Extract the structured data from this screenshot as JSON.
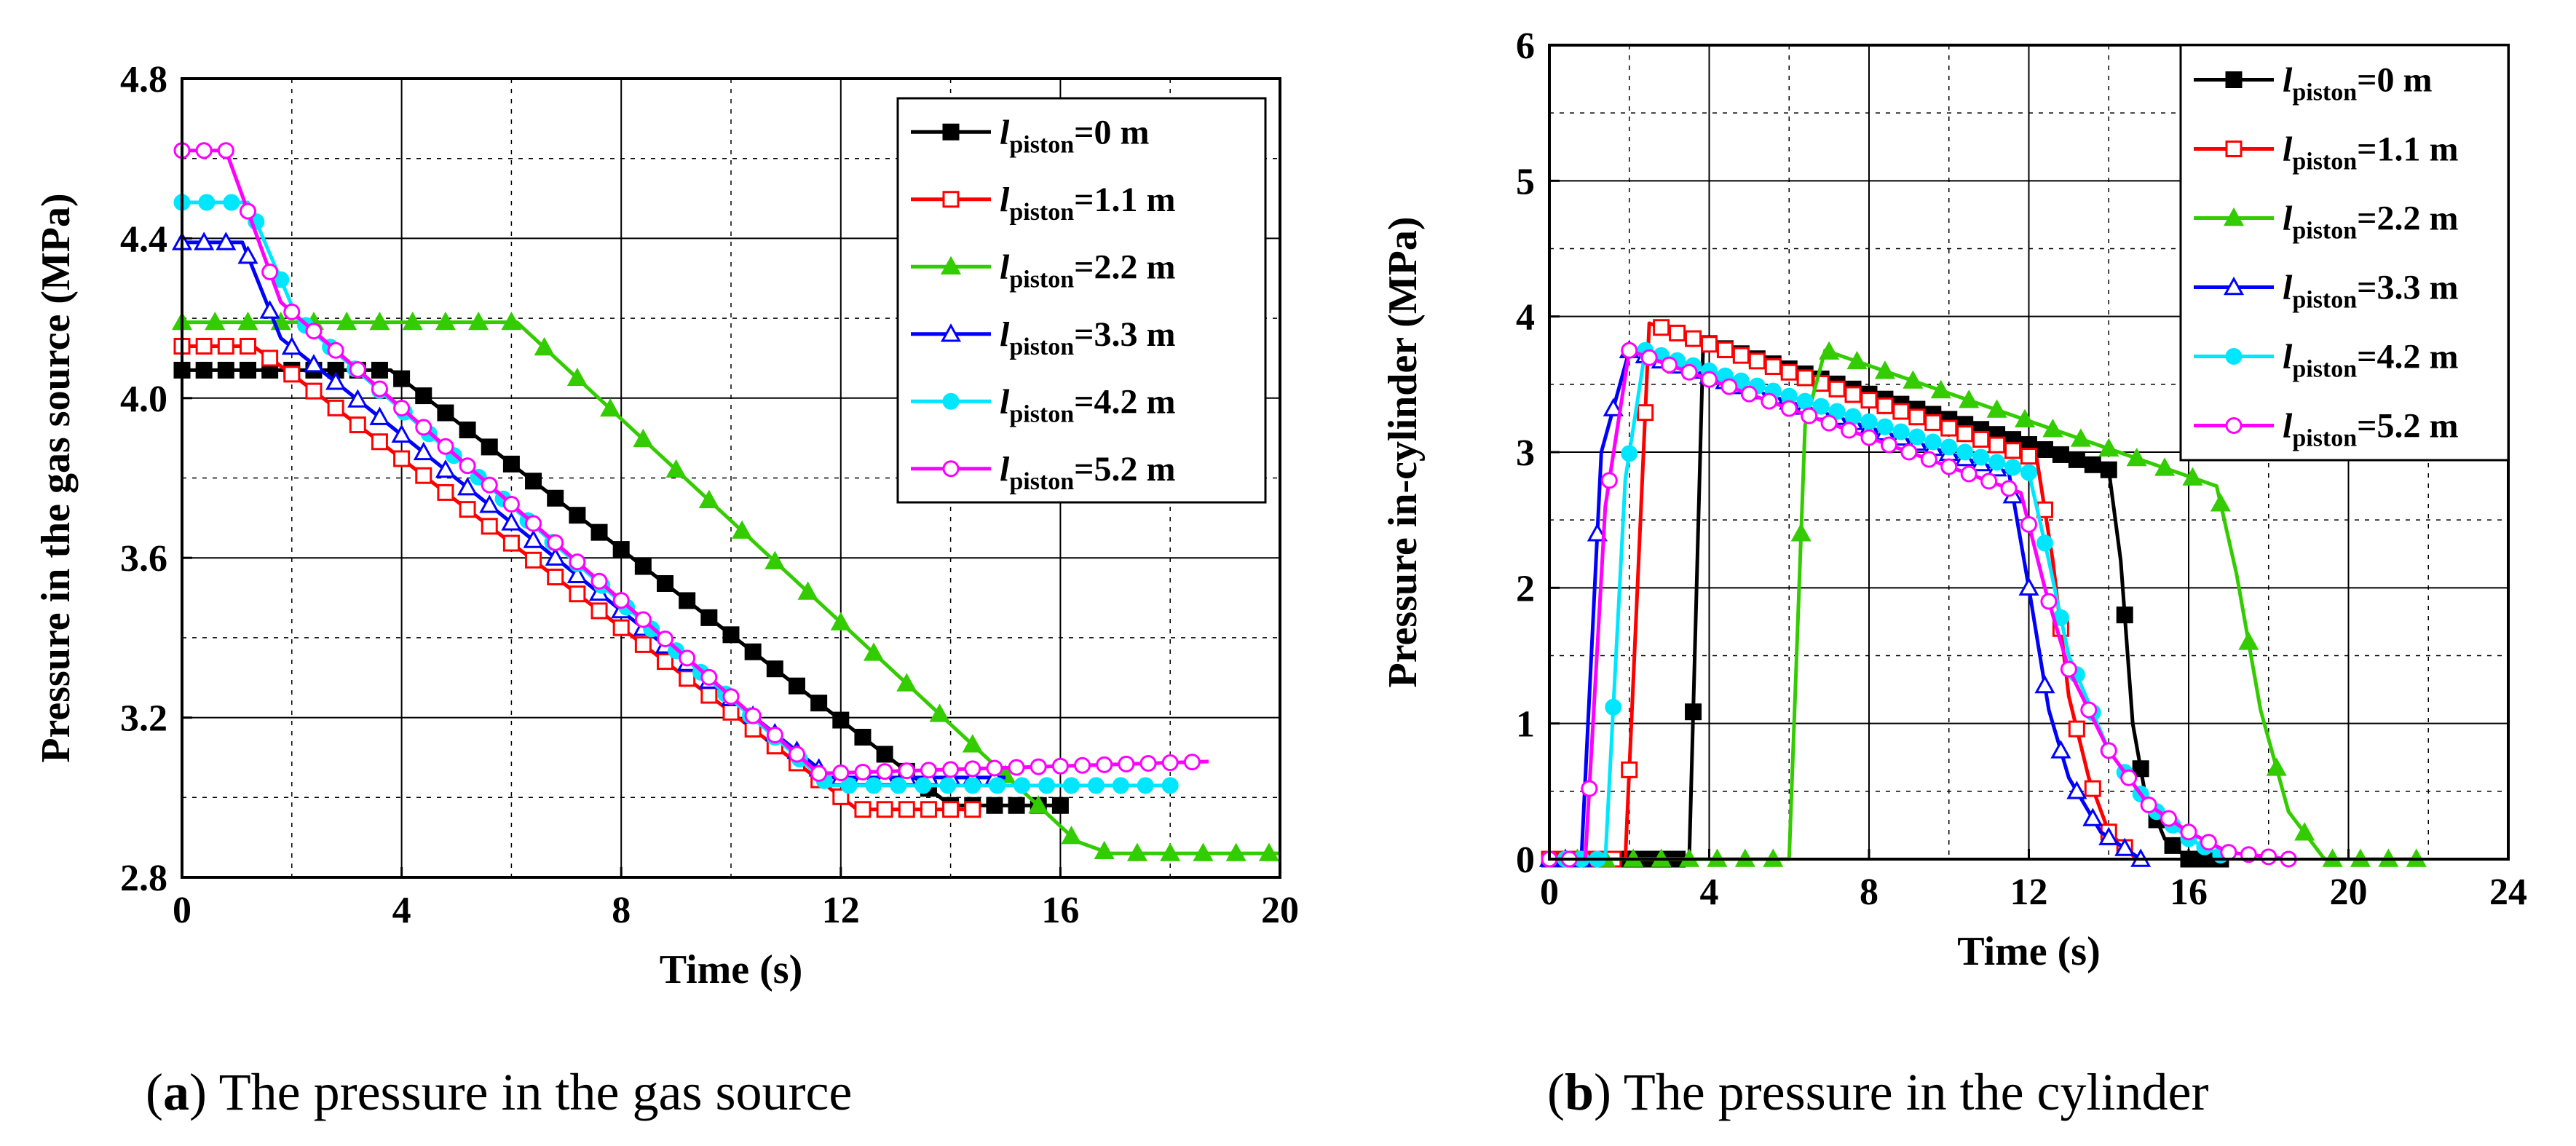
{
  "colors": {
    "black": "#000000",
    "red": "#ff0000",
    "green": "#33cc00",
    "blue": "#0000ff",
    "cyan": "#00e6ff",
    "magenta": "#ff00ff"
  },
  "chart_data": [
    {
      "type": "line",
      "caption_label": "a",
      "caption_text": "The pressure in the gas source",
      "xlabel": "Time (s)",
      "ylabel": "Pressure in the gas source (MPa)",
      "xlim": [
        0,
        20
      ],
      "ylim": [
        2.8,
        4.8
      ],
      "xticks": [
        "0",
        "4",
        "8",
        "12",
        "16",
        "20"
      ],
      "yticks": [
        "2.8",
        "3.2",
        "3.6",
        "4.0",
        "4.4",
        "4.8"
      ],
      "xtick_values": [
        0,
        4,
        8,
        12,
        16,
        20
      ],
      "ytick_values": [
        2.8,
        3.2,
        3.6,
        4.0,
        4.4,
        4.8
      ],
      "grid": true,
      "legend_position": "top-right",
      "series": [
        {
          "name": "0 m",
          "color": "black",
          "marker": "square-filled",
          "x": [
            0,
            3.8,
            14.0,
            16.0
          ],
          "y": [
            4.07,
            4.07,
            2.98,
            2.98
          ],
          "marker_step": 0.4
        },
        {
          "name": "1.1 m",
          "color": "red",
          "marker": "square-open",
          "x": [
            0,
            1.3,
            2.0,
            12.3,
            14.5
          ],
          "y": [
            4.13,
            4.13,
            4.06,
            2.97,
            2.97
          ],
          "marker_step": 0.4
        },
        {
          "name": "2.2 m",
          "color": "green",
          "marker": "triangle-filled",
          "x": [
            0,
            6.1,
            16.3,
            16.9,
            20.0
          ],
          "y": [
            4.19,
            4.19,
            2.89,
            2.86,
            2.86
          ],
          "marker_step": 0.6
        },
        {
          "name": "3.3 m",
          "color": "blue",
          "marker": "triangle-open",
          "x": [
            0,
            1.1,
            1.8,
            11.8,
            15.0
          ],
          "y": [
            4.39,
            4.39,
            4.15,
            3.05,
            3.05
          ],
          "marker_step": 0.4
        },
        {
          "name": "4.2 m",
          "color": "cyan",
          "marker": "circle-filled",
          "x": [
            0,
            1.2,
            2.1,
            11.8,
            18.0
          ],
          "y": [
            4.49,
            4.49,
            4.2,
            3.03,
            3.03
          ],
          "marker_step": 0.45
        },
        {
          "name": "5.2 m",
          "color": "magenta",
          "marker": "circle-open",
          "x": [
            0,
            0.8,
            1.8,
            11.6,
            18.7
          ],
          "y": [
            4.62,
            4.62,
            4.24,
            3.06,
            3.09
          ],
          "marker_step": 0.4
        }
      ]
    },
    {
      "type": "line",
      "caption_label": "b",
      "caption_text": "The pressure in the cylinder",
      "xlabel": "Time (s)",
      "ylabel": "Pressure in-cylinder (MPa)",
      "xlim": [
        0,
        24
      ],
      "ylim": [
        0,
        6
      ],
      "xticks": [
        "0",
        "4",
        "8",
        "12",
        "16",
        "20",
        "24"
      ],
      "yticks": [
        "0",
        "1",
        "2",
        "3",
        "4",
        "5",
        "6"
      ],
      "xtick_values": [
        0,
        4,
        8,
        12,
        16,
        20,
        24
      ],
      "ytick_values": [
        0,
        1,
        2,
        3,
        4,
        5,
        6
      ],
      "grid": true,
      "legend_position": "top-right",
      "series": [
        {
          "name": "0 m",
          "color": "black",
          "marker": "square-filled",
          "x": [
            0,
            3.5,
            3.85,
            4.0,
            14.0,
            14.3,
            14.6,
            14.9,
            15.4,
            16.0,
            17.0
          ],
          "y": [
            0,
            0,
            3.8,
            3.8,
            2.87,
            2.2,
            1.0,
            0.5,
            0.15,
            0,
            0
          ],
          "marker_step": 0.4
        },
        {
          "name": "1.1 m",
          "color": "red",
          "marker": "square-open",
          "x": [
            0,
            1.9,
            2.5,
            12.2,
            12.6,
            13.0,
            13.5,
            14.0,
            14.7
          ],
          "y": [
            0,
            0,
            3.95,
            2.95,
            2.2,
            1.2,
            0.6,
            0.2,
            0
          ],
          "marker_step": 0.4
        },
        {
          "name": "2.2 m",
          "color": "green",
          "marker": "triangle-filled",
          "x": [
            0,
            6.0,
            6.4,
            6.9,
            16.7,
            17.2,
            17.8,
            18.5,
            19.4,
            21.8
          ],
          "y": [
            0,
            0,
            3.2,
            3.75,
            2.75,
            2.1,
            1.1,
            0.35,
            0,
            0
          ],
          "marker_step": 0.7
        },
        {
          "name": "3.3 m",
          "color": "blue",
          "marker": "triangle-open",
          "x": [
            0,
            0.8,
            1.3,
            2.0,
            11.5,
            12.0,
            12.5,
            13.0,
            13.8,
            14.8
          ],
          "y": [
            0,
            0,
            3.0,
            3.75,
            2.85,
            2.0,
            1.1,
            0.6,
            0.2,
            0
          ],
          "marker_step": 0.4
        },
        {
          "name": "4.2 m",
          "color": "cyan",
          "marker": "circle-filled",
          "x": [
            0,
            1.4,
            1.9,
            2.4,
            12.0,
            12.5,
            13.0,
            14.0,
            15.0,
            16.0,
            17.0
          ],
          "y": [
            0,
            0,
            2.8,
            3.75,
            2.85,
            2.2,
            1.5,
            0.8,
            0.4,
            0.15,
            0
          ],
          "marker_step": 0.4
        },
        {
          "name": "5.2 m",
          "color": "magenta",
          "marker": "circle-open",
          "x": [
            0,
            0.9,
            1.4,
            2.0,
            11.8,
            12.4,
            13.0,
            14.0,
            15.0,
            16.0,
            17.0,
            18.5
          ],
          "y": [
            0,
            0,
            2.6,
            3.75,
            2.7,
            2.0,
            1.4,
            0.8,
            0.4,
            0.2,
            0.05,
            0
          ],
          "marker_step": 0.5
        }
      ]
    }
  ]
}
